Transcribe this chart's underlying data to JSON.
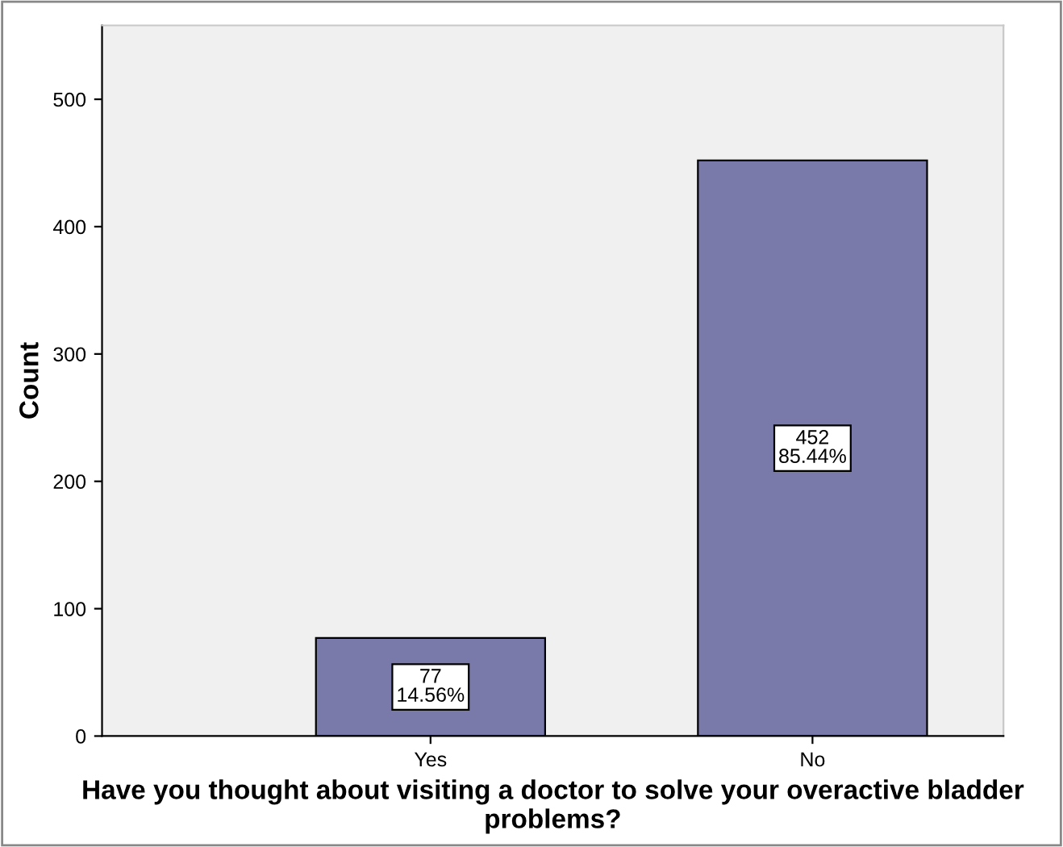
{
  "chart_data": {
    "type": "bar",
    "xlabel": "Have you thought about visiting a doctor to solve your overactive bladder problems?",
    "ylabel": "Count",
    "categories": [
      "Yes",
      "No"
    ],
    "values": [
      77,
      452
    ],
    "value_labels": [
      "77\n14.56%",
      "452\n85.44%"
    ],
    "color": "#7a7aaa",
    "ylim": [
      0,
      558
    ],
    "yticks": [
      0,
      100,
      200,
      300,
      400,
      500
    ],
    "grid": false
  }
}
